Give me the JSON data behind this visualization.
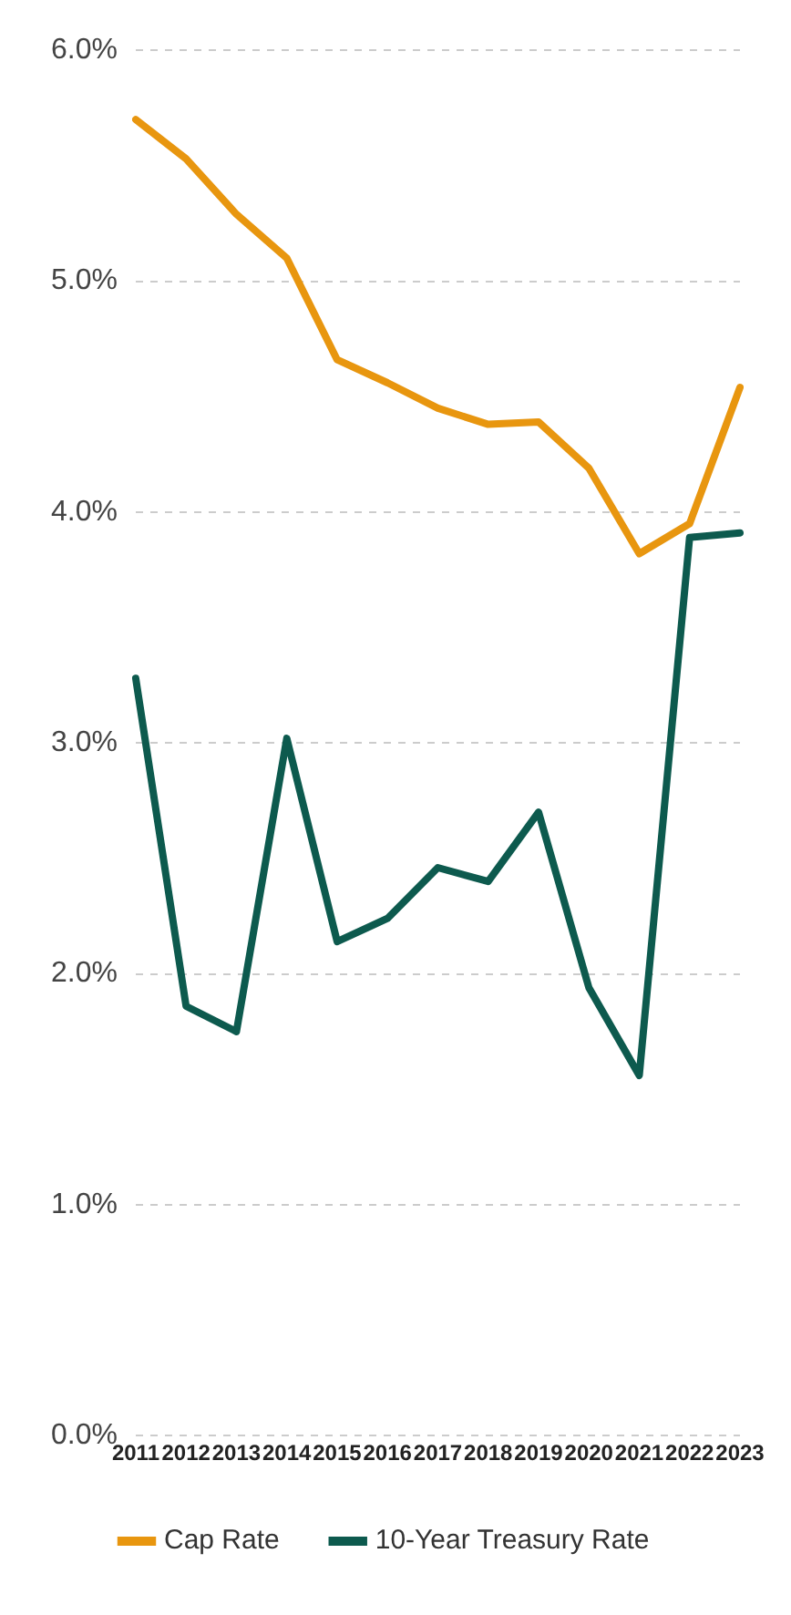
{
  "chart_data": {
    "type": "line",
    "categories": [
      "2011",
      "2012",
      "2013",
      "2014",
      "2015",
      "2016",
      "2017",
      "2018",
      "2019",
      "2020",
      "2021",
      "2022",
      "2023"
    ],
    "series": [
      {
        "name": "Cap Rate",
        "color": "#e8960f",
        "values": [
          5.7,
          5.53,
          5.29,
          5.1,
          4.66,
          4.56,
          4.45,
          4.38,
          4.39,
          4.19,
          3.82,
          3.95,
          4.54
        ]
      },
      {
        "name": "10-Year Treasury Rate",
        "color": "#0d5a4e",
        "values": [
          3.28,
          1.86,
          1.75,
          3.02,
          2.14,
          2.24,
          2.46,
          2.4,
          2.7,
          1.94,
          1.56,
          3.89,
          3.91
        ]
      }
    ],
    "ylim": [
      0,
      6
    ],
    "yticks": [
      {
        "value": 0,
        "label": "0.0%"
      },
      {
        "value": 1,
        "label": "1.0%"
      },
      {
        "value": 2,
        "label": "2.0%"
      },
      {
        "value": 3,
        "label": "3.0%"
      },
      {
        "value": 4,
        "label": "4.0%"
      },
      {
        "value": 5,
        "label": "5.0%"
      },
      {
        "value": 6,
        "label": "6.0%"
      }
    ],
    "grid": "y",
    "legend": "bottom",
    "marker": "none",
    "line_style": "solid"
  }
}
